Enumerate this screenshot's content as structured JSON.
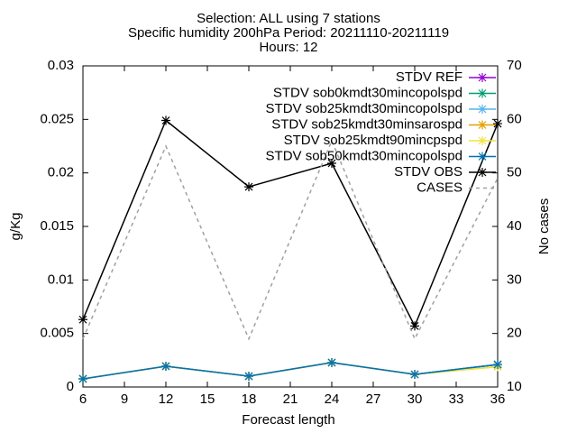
{
  "chart_data": {
    "type": "line",
    "title": [
      "Selection: ALL using     7 stations",
      "Specific humidity 200hPa   Period: 20211110-20211119",
      "Hours: 12"
    ],
    "xlabel": "Forecast length",
    "ylabel": "g/Kg",
    "y2label": "No cases",
    "x": [
      6,
      12,
      18,
      24,
      30,
      36
    ],
    "xlim": [
      6,
      36
    ],
    "xticks": [
      6,
      9,
      12,
      15,
      18,
      21,
      24,
      27,
      30,
      33,
      36
    ],
    "ylim": [
      0,
      0.03
    ],
    "yticks": [
      0,
      0.005,
      0.01,
      0.015,
      0.02,
      0.025,
      0.03
    ],
    "y2lim": [
      10,
      70
    ],
    "y2ticks": [
      10,
      20,
      30,
      40,
      50,
      60,
      70
    ],
    "legend": "top-right",
    "series": [
      {
        "name": "STDV REF",
        "color": "#9400d3",
        "values": [
          0.00076,
          0.00194,
          0.00101,
          0.00228,
          0.00118,
          0.0021
        ]
      },
      {
        "name": "STDV sob0kmdt30mincopolspd",
        "color": "#009e73",
        "values": [
          0.00076,
          0.00194,
          0.00101,
          0.00228,
          0.00118,
          0.0021
        ]
      },
      {
        "name": "STDV sob25kmdt30mincopolspd",
        "color": "#56b4e9",
        "values": [
          0.00076,
          0.00194,
          0.00101,
          0.00228,
          0.00118,
          0.0021
        ]
      },
      {
        "name": "STDV sob25kmdt30minsarospd",
        "color": "#e69f00",
        "values": [
          0.00076,
          0.00194,
          0.00101,
          0.00228,
          0.00118,
          0.0019
        ]
      },
      {
        "name": "STDV sob25kmdt90mincpspd",
        "color": "#f0e442",
        "values": [
          0.00076,
          0.00194,
          0.00101,
          0.00228,
          0.00118,
          0.0019
        ]
      },
      {
        "name": "STDV sob50kmdt30mincopolspd",
        "color": "#0072b2",
        "values": [
          0.00076,
          0.00194,
          0.00101,
          0.00228,
          0.00118,
          0.0021
        ]
      },
      {
        "name": "STDV OBS",
        "color": "#000000",
        "values": [
          0.0063,
          0.0249,
          0.0187,
          0.0209,
          0.0057,
          0.0246
        ]
      },
      {
        "name": "CASES",
        "color": "#a0a0a0",
        "dashed": true,
        "markers": false,
        "axis": "y2",
        "values": [
          19,
          55,
          19,
          56,
          19,
          49
        ]
      }
    ]
  }
}
